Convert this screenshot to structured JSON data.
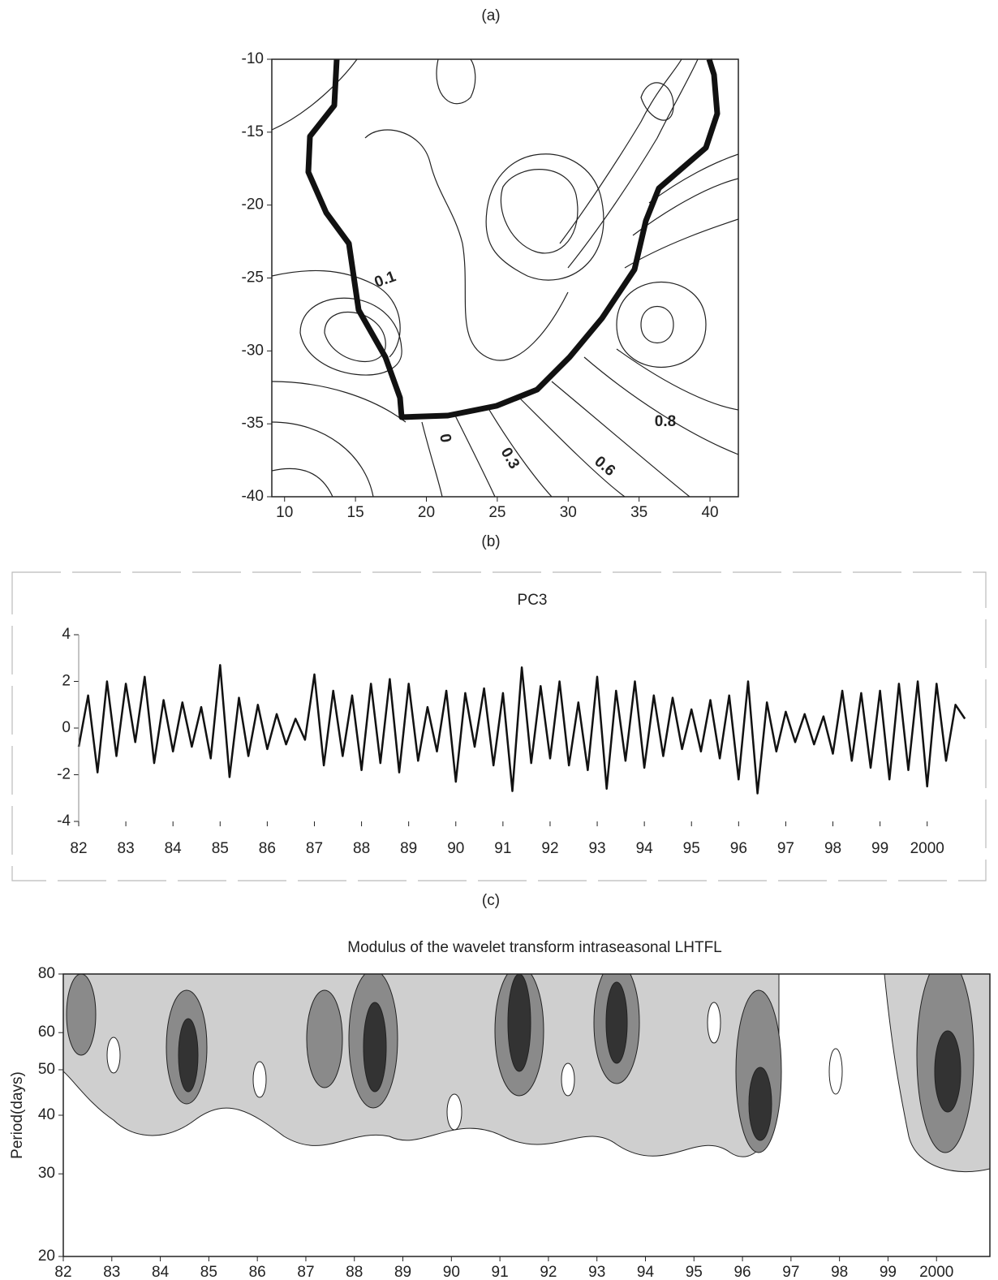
{
  "chart_data": [
    {
      "type": "contour",
      "label": "(a)",
      "xlim": [
        9.1,
        42
      ],
      "xticks": [
        10,
        15,
        20,
        25,
        30,
        35,
        40
      ],
      "ylim": [
        -40,
        -10
      ],
      "yticks": [
        -10,
        -15,
        -20,
        -25,
        -30,
        -35,
        -40
      ],
      "contour_labels": [
        "0.1",
        "0",
        "0.3",
        "0.6",
        "0.8"
      ]
    },
    {
      "type": "line",
      "label": "(b)",
      "title": "PC3",
      "color": "#111",
      "xlim": [
        1982,
        2000.9
      ],
      "xticks": [
        {
          "value": 1982,
          "label": "82"
        },
        {
          "value": 1983,
          "label": "83"
        },
        {
          "value": 1984,
          "label": "84"
        },
        {
          "value": 1985,
          "label": "85"
        },
        {
          "value": 1986,
          "label": "86"
        },
        {
          "value": 1987,
          "label": "87"
        },
        {
          "value": 1988,
          "label": "88"
        },
        {
          "value": 1989,
          "label": "89"
        },
        {
          "value": 1990,
          "label": "90"
        },
        {
          "value": 1991,
          "label": "91"
        },
        {
          "value": 1992,
          "label": "92"
        },
        {
          "value": 1993,
          "label": "93"
        },
        {
          "value": 1994,
          "label": "94"
        },
        {
          "value": 1995,
          "label": "95"
        },
        {
          "value": 1996,
          "label": "96"
        },
        {
          "value": 1997,
          "label": "97"
        },
        {
          "value": 1998,
          "label": "98"
        },
        {
          "value": 1999,
          "label": "99"
        },
        {
          "value": 2000,
          "label": "2000"
        }
      ],
      "ylim": [
        -4,
        4
      ],
      "yticks": [
        -4,
        -2,
        0,
        2,
        4
      ],
      "x": [
        1982.0,
        1982.2,
        1982.4,
        1982.6,
        1982.8,
        1983.0,
        1983.2,
        1983.4,
        1983.6,
        1983.8,
        1984.0,
        1984.2,
        1984.4,
        1984.6,
        1984.8,
        1985.0,
        1985.2,
        1985.4,
        1985.6,
        1985.8,
        1986.0,
        1986.2,
        1986.4,
        1986.6,
        1986.8,
        1987.0,
        1987.2,
        1987.4,
        1987.6,
        1987.8,
        1988.0,
        1988.2,
        1988.4,
        1988.6,
        1988.8,
        1989.0,
        1989.2,
        1989.4,
        1989.6,
        1989.8,
        1990.0,
        1990.2,
        1990.4,
        1990.6,
        1990.8,
        1991.0,
        1991.2,
        1991.4,
        1991.6,
        1991.8,
        1992.0,
        1992.2,
        1992.4,
        1992.6,
        1992.8,
        1993.0,
        1993.2,
        1993.4,
        1993.6,
        1993.8,
        1994.0,
        1994.2,
        1994.4,
        1994.6,
        1994.8,
        1995.0,
        1995.2,
        1995.4,
        1995.6,
        1995.8,
        1996.0,
        1996.2,
        1996.4,
        1996.6,
        1996.8,
        1997.0,
        1997.2,
        1997.4,
        1997.6,
        1997.8,
        1998.0,
        1998.2,
        1998.4,
        1998.6,
        1998.8,
        1999.0,
        1999.2,
        1999.4,
        1999.6,
        1999.8,
        2000.0,
        2000.2,
        2000.4,
        2000.6,
        2000.8
      ],
      "values": [
        -0.8,
        1.4,
        -1.9,
        2.0,
        -1.2,
        1.9,
        -0.6,
        2.2,
        -1.5,
        1.2,
        -1.0,
        1.1,
        -0.8,
        0.9,
        -1.3,
        2.7,
        -2.1,
        1.3,
        -1.2,
        1.0,
        -0.9,
        0.6,
        -0.7,
        0.4,
        -0.5,
        2.3,
        -1.6,
        1.6,
        -1.2,
        1.4,
        -1.8,
        1.9,
        -1.5,
        2.1,
        -1.9,
        1.9,
        -1.4,
        0.9,
        -1.0,
        1.6,
        -2.3,
        1.5,
        -0.8,
        1.7,
        -1.6,
        1.5,
        -2.7,
        2.6,
        -1.5,
        1.8,
        -1.3,
        2.0,
        -1.6,
        1.1,
        -1.8,
        2.2,
        -2.6,
        1.6,
        -1.4,
        2.0,
        -1.7,
        1.4,
        -1.2,
        1.3,
        -0.9,
        0.8,
        -1.0,
        1.2,
        -1.3,
        1.4,
        -2.2,
        2.0,
        -2.8,
        1.1,
        -1.0,
        0.7,
        -0.6,
        0.6,
        -0.7,
        0.5,
        -1.1,
        1.6,
        -1.4,
        1.5,
        -1.7,
        1.6,
        -2.2,
        1.9,
        -1.8,
        2.0,
        -2.5,
        1.9,
        -1.4,
        1.0,
        0.4
      ]
    },
    {
      "type": "contourf",
      "label": "(c)",
      "title": "Modulus of the wavelet transform intraseasonal LHTFL",
      "y_label": "Period(days)",
      "log_y": true,
      "xlim": [
        1982,
        2001.1
      ],
      "xticks": [
        {
          "value": 1982,
          "label": "82"
        },
        {
          "value": 1983,
          "label": "83"
        },
        {
          "value": 1984,
          "label": "84"
        },
        {
          "value": 1985,
          "label": "85"
        },
        {
          "value": 1986,
          "label": "86"
        },
        {
          "value": 1987,
          "label": "87"
        },
        {
          "value": 1988,
          "label": "88"
        },
        {
          "value": 1989,
          "label": "89"
        },
        {
          "value": 1990,
          "label": "90"
        },
        {
          "value": 1991,
          "label": "91"
        },
        {
          "value": 1992,
          "label": "92"
        },
        {
          "value": 1993,
          "label": "93"
        },
        {
          "value": 1994,
          "label": "94"
        },
        {
          "value": 1995,
          "label": "95"
        },
        {
          "value": 1996,
          "label": "96"
        },
        {
          "value": 1997,
          "label": "97"
        },
        {
          "value": 1998,
          "label": "98"
        },
        {
          "value": 1999,
          "label": "99"
        },
        {
          "value": 2000,
          "label": "2000"
        }
      ],
      "ylim": [
        20,
        80
      ],
      "yticks": [
        20,
        30,
        40,
        50,
        60,
        80
      ]
    }
  ]
}
